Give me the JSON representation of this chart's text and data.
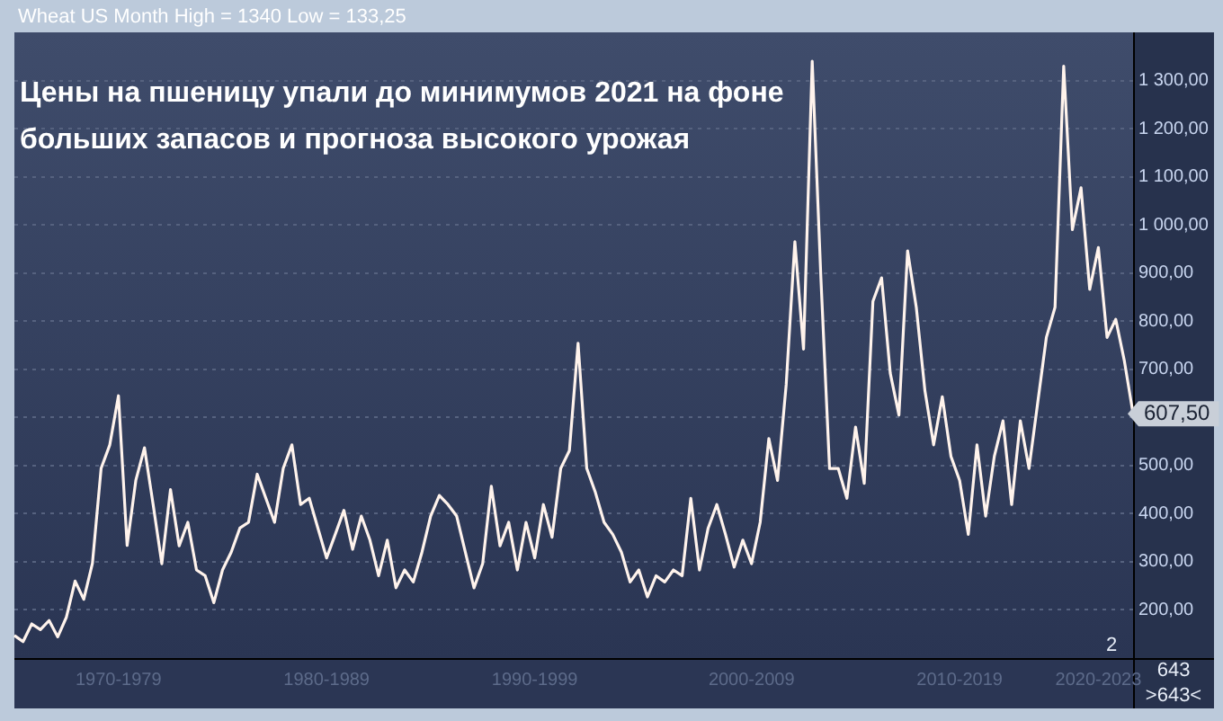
{
  "chart_data": {
    "type": "line",
    "title": "Цены на пшеницу упали до минимумов 2021 на фоне больших запасов и прогноза высокого урожая",
    "annotations": [
      "Wheat US Month High = 1340 Low = 133,25",
      "607,50",
      "2",
      "643",
      ">643<"
    ],
    "categories": [
      null,
      null,
      null,
      null,
      null,
      null,
      null,
      null,
      null,
      null,
      null,
      null,
      "1970-1979",
      null,
      null,
      null,
      null,
      null,
      null,
      null,
      null,
      null,
      null,
      null,
      null,
      null,
      null,
      null,
      null,
      null,
      null,
      null,
      null,
      null,
      null,
      null,
      "1980-1989",
      null,
      null,
      null,
      null,
      null,
      null,
      null,
      null,
      null,
      null,
      null,
      null,
      null,
      null,
      null,
      null,
      null,
      null,
      null,
      null,
      null,
      null,
      null,
      "1990-1999",
      null,
      null,
      null,
      null,
      null,
      null,
      null,
      null,
      null,
      null,
      null,
      null,
      null,
      null,
      null,
      null,
      null,
      null,
      null,
      null,
      null,
      null,
      null,
      null,
      "2000-2009",
      null,
      null,
      null,
      null,
      null,
      null,
      null,
      null,
      null,
      null,
      null,
      null,
      null,
      null,
      null,
      null,
      null,
      null,
      null,
      null,
      null,
      null,
      null,
      "2010-2019",
      null,
      null,
      null,
      null,
      null,
      null,
      null,
      null,
      null,
      null,
      null,
      null,
      null,
      null,
      null,
      "2020-2023",
      null,
      null,
      null,
      null
    ],
    "series": [
      {
        "color": "#fff3ec",
        "values": [
          147,
          134,
          171,
          159,
          178,
          144,
          185,
          260,
          222,
          297,
          494,
          543,
          645,
          334,
          469,
          537,
          419,
          296,
          450,
          333,
          382,
          283,
          271,
          215,
          283,
          320,
          370,
          382,
          482,
          432,
          382,
          494,
          543,
          419,
          432,
          370,
          308,
          357,
          407,
          326,
          395,
          345,
          271,
          345,
          246,
          283,
          258,
          320,
          395,
          438,
          419,
          395,
          320,
          246,
          296,
          457,
          333,
          382,
          283,
          382,
          308,
          419,
          351,
          494,
          531,
          754,
          494,
          444,
          382,
          357,
          320,
          258,
          283,
          227,
          271,
          258,
          283,
          271,
          432,
          283,
          370,
          419,
          357,
          289,
          345,
          296,
          382,
          556,
          469,
          668,
          965,
          742,
          1340,
          890,
          494,
          494,
          432,
          580,
          463,
          841,
          890,
          692,
          605,
          946,
          829,
          655,
          543,
          643,
          519,
          469,
          357,
          543,
          395,
          519,
          593,
          419,
          593,
          494,
          630,
          766,
          829,
          1330,
          990,
          1077,
          866,
          953,
          766,
          804,
          717,
          607.5
        ]
      }
    ],
    "ylim": [
      100,
      1400
    ],
    "yticks": [
      {
        "value": 200,
        "label": "200,00"
      },
      {
        "value": 300,
        "label": "300,00"
      },
      {
        "value": 400,
        "label": "400,00"
      },
      {
        "value": 500,
        "label": "500,00"
      },
      {
        "value": 600,
        "label": null
      },
      {
        "value": 700,
        "label": "700,00"
      },
      {
        "value": 800,
        "label": "800,00"
      },
      {
        "value": 900,
        "label": "900,00"
      },
      {
        "value": 1000,
        "label": "1 000,00"
      },
      {
        "value": 1100,
        "label": "1 100,00"
      },
      {
        "value": 1200,
        "label": "1 200,00"
      },
      {
        "value": 1300,
        "label": "1 300,00"
      }
    ],
    "grid": "y",
    "legend": false,
    "marker": "none",
    "line_style": "solid"
  }
}
